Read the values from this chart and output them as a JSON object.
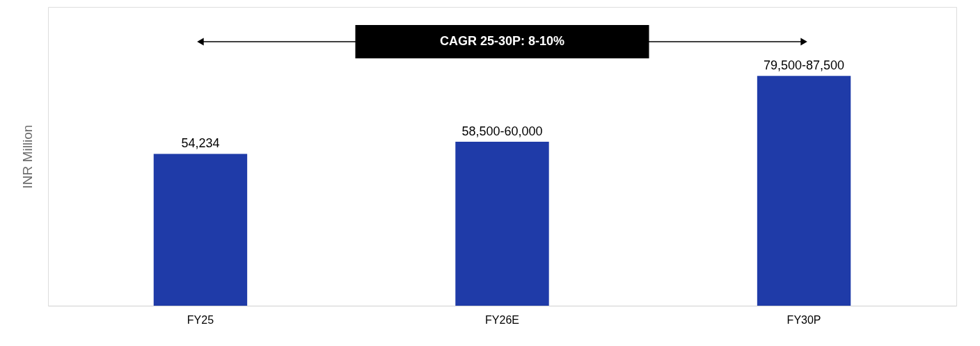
{
  "chart_data": {
    "type": "bar",
    "ylabel": "INR Million",
    "categories": [
      "FY25",
      "FY26E",
      "FY30P"
    ],
    "values": [
      54234,
      58600,
      82100
    ],
    "value_labels": [
      "54,234",
      "58,500-60,000",
      "79,500-87,500"
    ],
    "color": "#1f3ba8",
    "annotations": [
      "CAGR 25-30P: 8-10%"
    ],
    "grid": false
  }
}
